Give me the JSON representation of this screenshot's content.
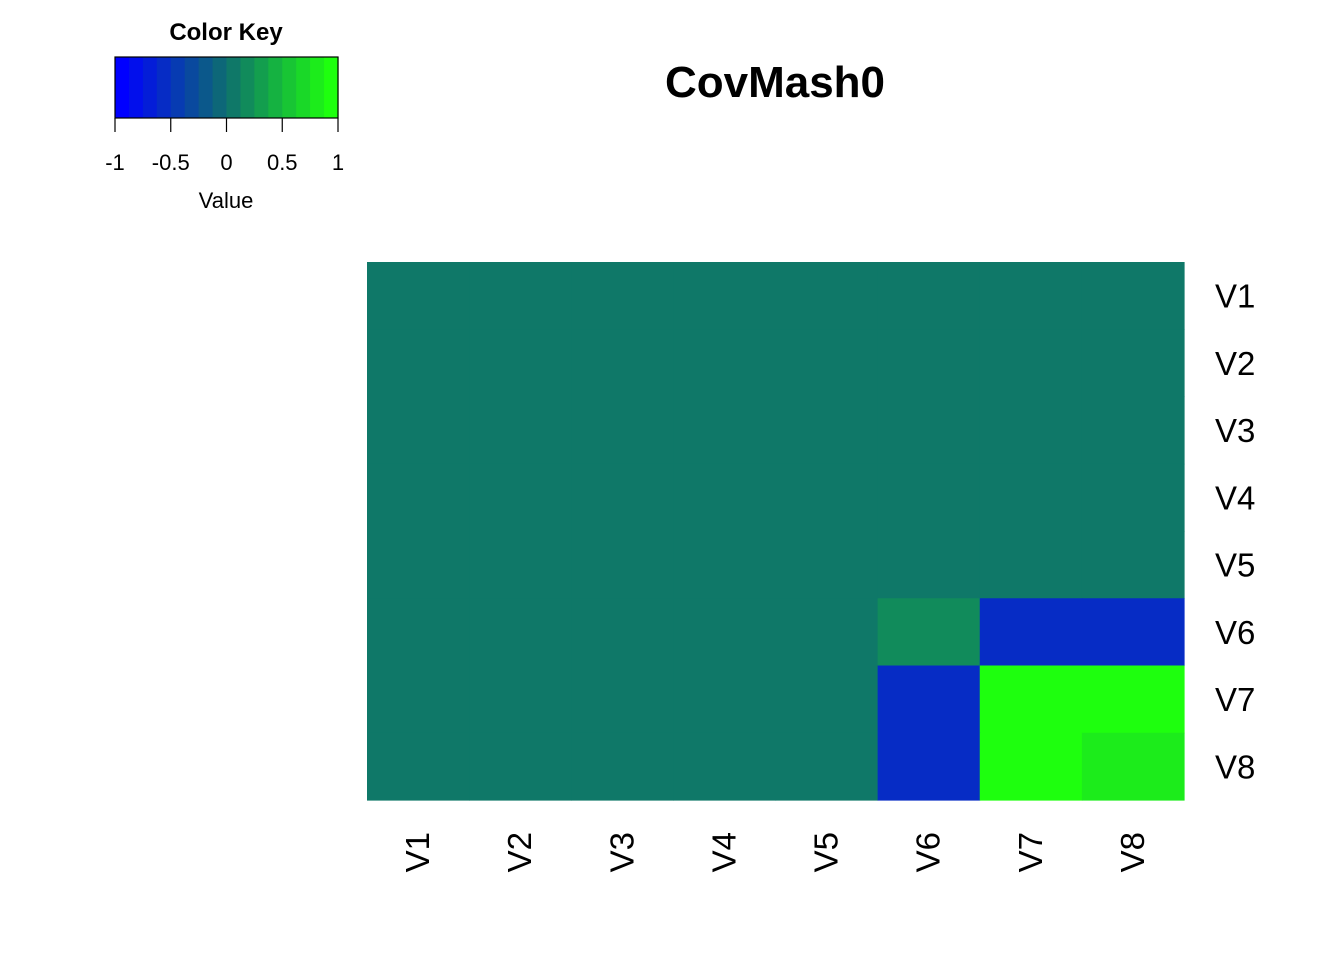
{
  "chart_data": {
    "type": "heatmap",
    "title": "CovMash0",
    "row_labels": [
      "V1",
      "V2",
      "V3",
      "V4",
      "V5",
      "V6",
      "V7",
      "V8"
    ],
    "col_labels": [
      "V1",
      "V2",
      "V3",
      "V4",
      "V5",
      "V6",
      "V7",
      "V8"
    ],
    "values": [
      [
        0,
        0,
        0,
        0,
        0,
        0,
        0,
        0
      ],
      [
        0,
        0,
        0,
        0,
        0,
        0,
        0,
        0
      ],
      [
        0,
        0,
        0,
        0,
        0,
        0,
        0,
        0
      ],
      [
        0,
        0,
        0,
        0,
        0,
        0,
        0,
        0
      ],
      [
        0,
        0,
        0,
        0,
        0,
        0,
        0,
        0
      ],
      [
        0,
        0,
        0,
        0,
        0,
        0.18,
        -0.55,
        -0.55
      ],
      [
        0,
        0,
        0,
        0,
        0,
        -0.55,
        0.98,
        0.92
      ],
      [
        0,
        0,
        0,
        0,
        0,
        -0.55,
        0.92,
        0.76
      ]
    ],
    "color_scale": {
      "low": "#0000FF",
      "mid": "#0E6E6E",
      "high": "#1EFF0E",
      "range": [
        -1,
        1
      ],
      "bins": 16
    },
    "color_key": {
      "title": "Color Key",
      "ticks": [
        "-1",
        "-0.5",
        "0",
        "0.5",
        "1"
      ],
      "tick_values": [
        -1,
        -0.5,
        0,
        0.5,
        1
      ],
      "xlabel": "Value"
    }
  }
}
